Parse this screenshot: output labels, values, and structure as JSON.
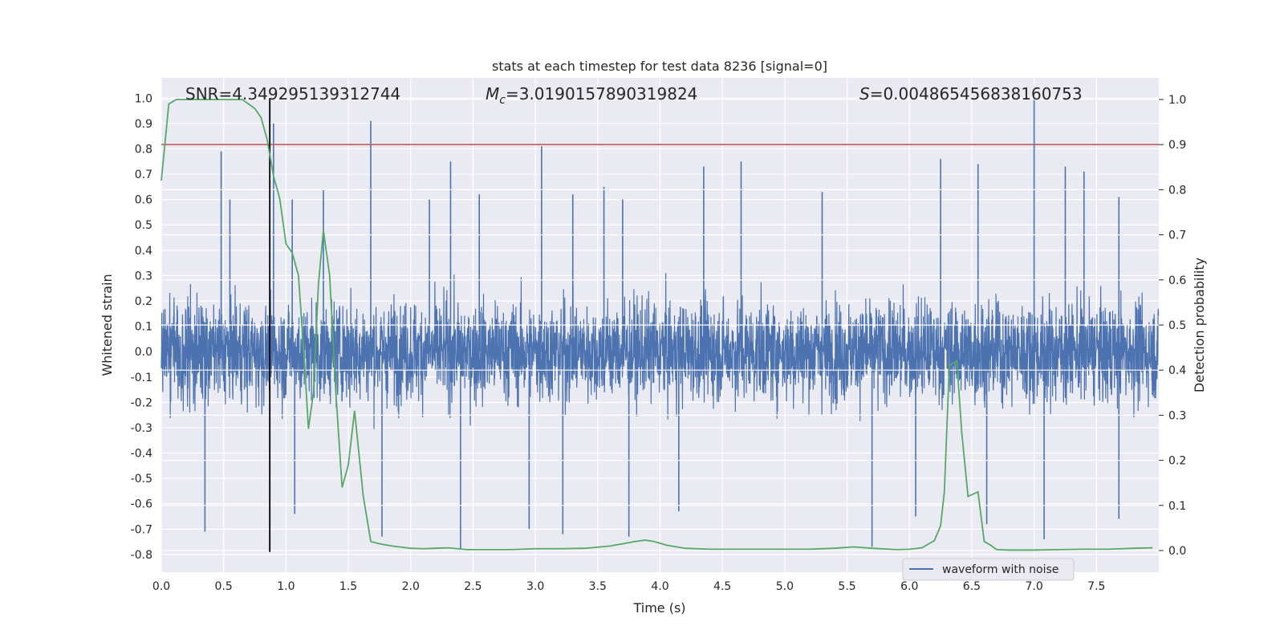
{
  "chart_data": {
    "type": "line",
    "title": "stats at each timestep for test data 8236 [signal=0]",
    "xlabel": "Time (s)",
    "ylabel_left": "Whitened strain",
    "ylabel_right": "Detection probability",
    "xlim": [
      0.0,
      8.0
    ],
    "ylim_left": [
      -0.87,
      1.08
    ],
    "ylim_right": [
      -0.048,
      1.048
    ],
    "x_ticks": [
      "0.0",
      "0.5",
      "1.0",
      "1.5",
      "2.0",
      "2.5",
      "3.0",
      "3.5",
      "4.0",
      "4.5",
      "5.0",
      "5.5",
      "6.0",
      "6.5",
      "7.0",
      "7.5"
    ],
    "y_ticks_left": [
      "-0.8",
      "-0.7",
      "-0.6",
      "-0.5",
      "-0.4",
      "-0.3",
      "-0.2",
      "-0.1",
      "0.0",
      "0.1",
      "0.2",
      "0.3",
      "0.4",
      "0.5",
      "0.6",
      "0.7",
      "0.8",
      "0.9",
      "1.0"
    ],
    "y_ticks_right": [
      "0.0",
      "0.1",
      "0.2",
      "0.3",
      "0.4",
      "0.5",
      "0.6",
      "0.7",
      "0.8",
      "0.9",
      "1.0"
    ],
    "grid": true,
    "annotations": {
      "snr": "SNR=4.349295139312744",
      "mc_symbol": "M",
      "mc_sub": "c",
      "mc_value": "=3.0190157890319824",
      "s_symbol": "S",
      "s_value": "=0.004865456838160753"
    },
    "threshold_right": 0.9,
    "threshold_color": "#c44e52",
    "vline_x": 0.87,
    "vline_range_left": [
      -0.79,
      1.0
    ],
    "legend": {
      "entries": [
        "waveform with noise"
      ],
      "placement": "lower-right"
    },
    "series": [
      {
        "name": "waveform with noise",
        "axis": "left",
        "color": "#4c72b0",
        "style": "dense noise, approx. std 0.22, range -0.79 to 1.0",
        "spikes": [
          [
            0.48,
            0.79
          ],
          [
            0.55,
            0.6
          ],
          [
            0.9,
            0.9
          ],
          [
            1.05,
            0.6
          ],
          [
            1.3,
            0.64
          ],
          [
            1.68,
            0.91
          ],
          [
            2.15,
            0.6
          ],
          [
            2.32,
            0.75
          ],
          [
            2.55,
            0.62
          ],
          [
            3.05,
            0.81
          ],
          [
            3.3,
            0.62
          ],
          [
            3.55,
            0.65
          ],
          [
            3.7,
            0.6
          ],
          [
            4.35,
            0.73
          ],
          [
            4.65,
            0.75
          ],
          [
            5.3,
            0.63
          ],
          [
            6.25,
            0.76
          ],
          [
            6.55,
            0.74
          ],
          [
            7.0,
            1.0
          ],
          [
            7.25,
            0.73
          ],
          [
            7.4,
            0.71
          ],
          [
            7.68,
            0.61
          ],
          [
            0.35,
            -0.71
          ],
          [
            1.07,
            -0.64
          ],
          [
            1.77,
            -0.73
          ],
          [
            2.4,
            -0.78
          ],
          [
            2.95,
            -0.7
          ],
          [
            3.22,
            -0.72
          ],
          [
            3.75,
            -0.73
          ],
          [
            4.15,
            -0.63
          ],
          [
            5.7,
            -0.77
          ],
          [
            6.05,
            -0.65
          ],
          [
            6.62,
            -0.68
          ],
          [
            7.08,
            -0.74
          ],
          [
            7.68,
            -0.66
          ]
        ]
      },
      {
        "name": "",
        "axis": "right",
        "color": "#55a868",
        "x": [
          0.0,
          0.06,
          0.12,
          0.2,
          0.3,
          0.4,
          0.5,
          0.6,
          0.65,
          0.7,
          0.75,
          0.8,
          0.85,
          0.9,
          0.95,
          1.0,
          1.05,
          1.1,
          1.15,
          1.18,
          1.22,
          1.26,
          1.3,
          1.35,
          1.4,
          1.45,
          1.5,
          1.55,
          1.62,
          1.68,
          1.75,
          1.85,
          2.0,
          2.1,
          2.2,
          2.3,
          2.45,
          2.6,
          2.8,
          3.0,
          3.2,
          3.4,
          3.6,
          3.7,
          3.8,
          3.88,
          3.95,
          4.05,
          4.2,
          4.4,
          4.6,
          4.8,
          5.0,
          5.2,
          5.4,
          5.55,
          5.7,
          5.9,
          6.0,
          6.1,
          6.2,
          6.25,
          6.28,
          6.32,
          6.38,
          6.42,
          6.47,
          6.55,
          6.6,
          6.65,
          6.7,
          6.8,
          7.0,
          7.2,
          7.4,
          7.6,
          7.7,
          7.8,
          7.95
        ],
        "y": [
          0.82,
          0.99,
          1.0,
          1.0,
          1.0,
          1.0,
          1.0,
          1.0,
          1.0,
          0.99,
          0.98,
          0.96,
          0.91,
          0.83,
          0.78,
          0.68,
          0.66,
          0.61,
          0.41,
          0.27,
          0.35,
          0.59,
          0.71,
          0.61,
          0.35,
          0.14,
          0.19,
          0.31,
          0.12,
          0.02,
          0.015,
          0.01,
          0.005,
          0.004,
          0.005,
          0.006,
          0.002,
          0.002,
          0.002,
          0.004,
          0.004,
          0.005,
          0.01,
          0.015,
          0.02,
          0.023,
          0.02,
          0.012,
          0.005,
          0.003,
          0.003,
          0.003,
          0.003,
          0.003,
          0.005,
          0.008,
          0.005,
          0.002,
          0.003,
          0.006,
          0.022,
          0.055,
          0.13,
          0.41,
          0.42,
          0.26,
          0.12,
          0.13,
          0.02,
          0.012,
          0.002,
          0.001,
          0.001,
          0.002,
          0.003,
          0.003,
          0.004,
          0.005,
          0.006
        ]
      }
    ]
  }
}
